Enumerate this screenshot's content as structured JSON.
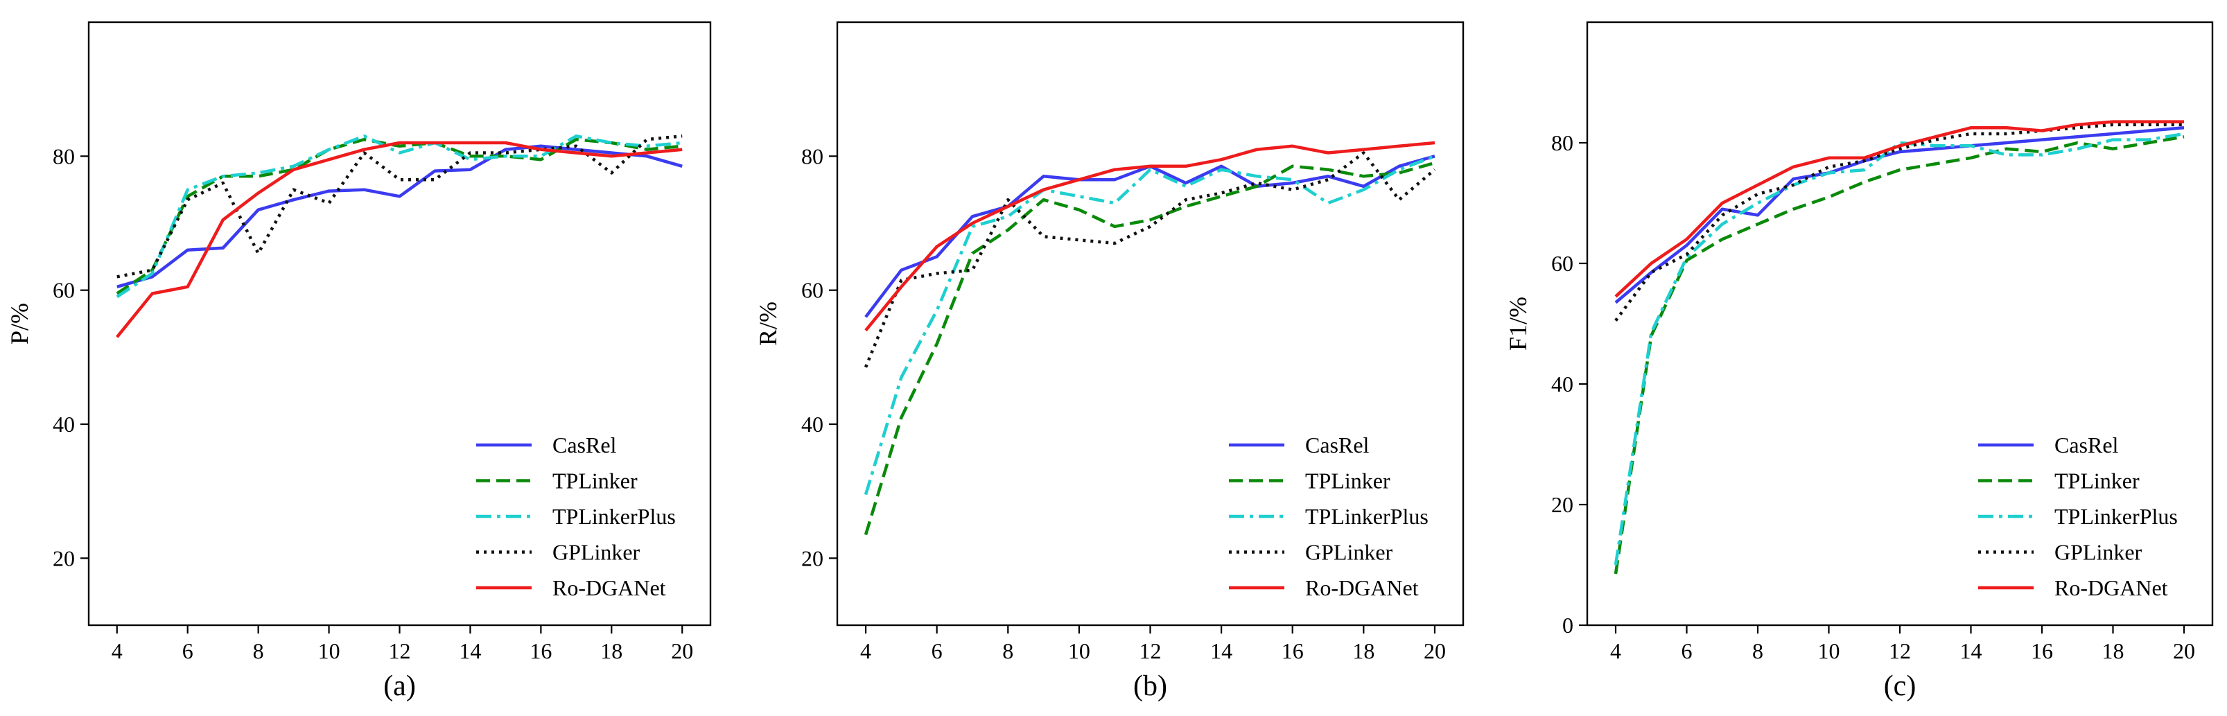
{
  "colors": {
    "CasRel": "#3b3bf0",
    "TPLinker": "#0a8a0a",
    "TPLinkerPlus": "#1fcfcf",
    "GPLinker": "#111111",
    "Ro-DGANet": "#ee1c1c"
  },
  "chart_data": [
    {
      "type": "line",
      "panel_label": "(a)",
      "ylabel": "P/%",
      "xlabel": "",
      "xlim": [
        3.2,
        20.8
      ],
      "ylim": [
        10,
        100
      ],
      "xticks": [
        4,
        6,
        8,
        10,
        12,
        14,
        16,
        18,
        20
      ],
      "yticks": [
        20,
        40,
        60,
        80
      ],
      "legend_position": "bottom-right",
      "x": [
        4,
        5,
        6,
        7,
        8,
        9,
        10,
        11,
        12,
        13,
        14,
        15,
        16,
        17,
        18,
        19,
        20
      ],
      "series": [
        {
          "name": "CasRel",
          "style": "solid",
          "values": [
            60.5,
            62,
            66,
            66.3,
            72,
            73.5,
            74.8,
            75,
            74,
            77.8,
            78,
            81,
            81.5,
            81,
            80.5,
            80,
            78.5
          ]
        },
        {
          "name": "TPLinker",
          "style": "dashed",
          "values": [
            59.5,
            63,
            74,
            77,
            77,
            78,
            81,
            82.5,
            81.5,
            82,
            80,
            80,
            79.5,
            82.5,
            82,
            81,
            81.5
          ]
        },
        {
          "name": "TPLinkerPlus",
          "style": "dashdot",
          "values": [
            59,
            62.5,
            75,
            77,
            77.5,
            78.5,
            81,
            83,
            80.5,
            82,
            79.5,
            80,
            80,
            83,
            82,
            81.5,
            82
          ]
        },
        {
          "name": "GPLinker",
          "style": "dotted",
          "values": [
            62,
            63,
            73.5,
            76,
            65.5,
            75,
            73,
            80.5,
            76.5,
            76.5,
            80.5,
            80.5,
            81,
            81.5,
            77.5,
            82.5,
            83
          ]
        },
        {
          "name": "Ro-DGANet",
          "style": "solid",
          "values": [
            53,
            59.5,
            60.5,
            70.5,
            74.5,
            78,
            79.5,
            81,
            82,
            82,
            82,
            82,
            81,
            80.5,
            80,
            80.5,
            81
          ]
        }
      ]
    },
    {
      "type": "line",
      "panel_label": "(b)",
      "ylabel": "R/%",
      "xlabel": "",
      "xlim": [
        3.2,
        20.8
      ],
      "ylim": [
        10,
        100
      ],
      "xticks": [
        4,
        6,
        8,
        10,
        12,
        14,
        16,
        18,
        20
      ],
      "yticks": [
        20,
        40,
        60,
        80
      ],
      "legend_position": "bottom-right",
      "x": [
        4,
        5,
        6,
        7,
        8,
        9,
        10,
        11,
        12,
        13,
        14,
        15,
        16,
        17,
        18,
        19,
        20
      ],
      "series": [
        {
          "name": "CasRel",
          "style": "solid",
          "values": [
            56,
            63,
            65,
            71,
            72.5,
            77,
            76.5,
            76.5,
            78.5,
            76,
            78.5,
            75.5,
            76,
            77,
            75.5,
            78.5,
            80
          ]
        },
        {
          "name": "TPLinker",
          "style": "dashed",
          "values": [
            23.5,
            41,
            52,
            65.5,
            69,
            73.5,
            72,
            69.5,
            70.5,
            72.5,
            74,
            75.5,
            78.5,
            78,
            77,
            77.5,
            79
          ]
        },
        {
          "name": "TPLinkerPlus",
          "style": "dashdot",
          "values": [
            29.5,
            47,
            57,
            69.5,
            71,
            75,
            74,
            73,
            78,
            75.5,
            78,
            77,
            76.5,
            73,
            75,
            78,
            80
          ]
        },
        {
          "name": "GPLinker",
          "style": "dotted",
          "values": [
            48.5,
            61.5,
            62.5,
            63,
            73.5,
            68,
            67.5,
            67,
            69.5,
            73.5,
            74.5,
            76,
            75,
            76.5,
            80.5,
            73.5,
            78
          ]
        },
        {
          "name": "Ro-DGANet",
          "style": "solid",
          "values": [
            54,
            60.5,
            66.5,
            70,
            72.5,
            75,
            76.5,
            78,
            78.5,
            78.5,
            79.5,
            81,
            81.5,
            80.5,
            81,
            81.5,
            82
          ]
        }
      ]
    },
    {
      "type": "line",
      "panel_label": "(c)",
      "ylabel": "F1/%",
      "xlabel": "",
      "xlim": [
        3.2,
        20.8
      ],
      "ylim": [
        0,
        100
      ],
      "xticks": [
        4,
        6,
        8,
        10,
        12,
        14,
        16,
        18,
        20
      ],
      "yticks": [
        0,
        20,
        40,
        60,
        80
      ],
      "legend_position": "bottom-right",
      "x": [
        4,
        5,
        6,
        7,
        8,
        9,
        10,
        11,
        12,
        13,
        14,
        15,
        16,
        17,
        18,
        19,
        20
      ],
      "series": [
        {
          "name": "CasRel",
          "style": "solid",
          "values": [
            53.5,
            58.5,
            63,
            69,
            68,
            74,
            75,
            77,
            78.5,
            79,
            79.5,
            80,
            80.5,
            81,
            81.5,
            82,
            82.5
          ]
        },
        {
          "name": "TPLinker",
          "style": "dashed",
          "values": [
            8.5,
            48,
            60.5,
            64,
            66.5,
            69,
            71,
            73.5,
            75.5,
            76.5,
            77.5,
            79,
            78.5,
            80,
            79,
            80,
            81
          ]
        },
        {
          "name": "TPLinkerPlus",
          "style": "dashdot",
          "values": [
            10,
            48.5,
            61,
            66.5,
            70,
            73,
            75,
            75.5,
            80,
            79.5,
            79.5,
            78,
            78,
            79,
            80.5,
            80.5,
            81.5
          ]
        },
        {
          "name": "GPLinker",
          "style": "dotted",
          "values": [
            50.5,
            58.5,
            61.5,
            68,
            71.5,
            73,
            76,
            77,
            79,
            80.5,
            81.5,
            81.5,
            82,
            82.5,
            83,
            83,
            83
          ]
        },
        {
          "name": "Ro-DGANet",
          "style": "solid",
          "values": [
            54.5,
            60,
            64,
            70,
            73,
            76,
            77.5,
            77.5,
            79.5,
            81,
            82.5,
            82.5,
            82,
            83,
            83.5,
            83.5,
            83.5
          ]
        }
      ]
    }
  ]
}
